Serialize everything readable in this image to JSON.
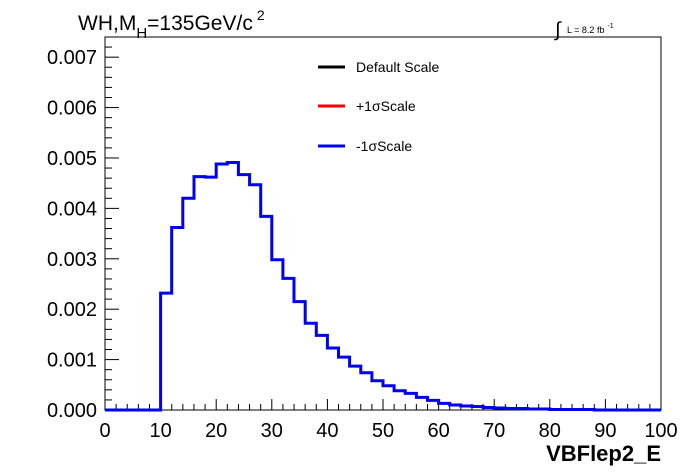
{
  "chart_data": {
    "type": "line",
    "style": "step-histogram",
    "title_main": "WH,M",
    "title_sub": "H",
    "title_rest": "=135GeV/c",
    "title_sup": "2",
    "lumi_integral": "∫",
    "lumi_text": "L = 8.2 fb",
    "lumi_sup": "-1",
    "xlabel": "VBFlep2_E",
    "ylabel": "",
    "xlim": [
      0,
      100
    ],
    "ylim": [
      0,
      0.0074
    ],
    "xticks": [
      "0",
      "10",
      "20",
      "30",
      "40",
      "50",
      "60",
      "70",
      "80",
      "90",
      "100"
    ],
    "yticks": [
      "0.000",
      "0.001",
      "0.002",
      "0.003",
      "0.004",
      "0.005",
      "0.006",
      "0.007"
    ],
    "bin_width": 2,
    "bin_edges_start": 0,
    "legend_position": "top-center",
    "series": [
      {
        "name": "Default Scale",
        "color": "#000000",
        "draw": false,
        "values": [
          0,
          0,
          0,
          0,
          0,
          0.00232,
          0.00362,
          0.0042,
          0.00463,
          0.00462,
          0.00488,
          0.00491,
          0.00467,
          0.00447,
          0.00384,
          0.00298,
          0.00261,
          0.00215,
          0.00172,
          0.00148,
          0.00123,
          0.00105,
          0.00087,
          0.00074,
          0.00058,
          0.00048,
          0.00038,
          0.00033,
          0.00025,
          0.00019,
          0.00013,
          0.0001,
          8e-05,
          7e-05,
          5e-05,
          4e-05,
          3e-05,
          3e-05,
          2e-05,
          2e-05,
          1e-05,
          1e-05,
          1e-05,
          1e-05,
          0.0,
          0.0,
          0.0,
          0.0,
          0.0,
          0.0
        ]
      },
      {
        "name": "+1σScale",
        "color": "#ff0000",
        "draw": false,
        "values": [
          0,
          0,
          0,
          0,
          0,
          0.00232,
          0.00362,
          0.0042,
          0.00463,
          0.00462,
          0.00488,
          0.00491,
          0.00467,
          0.00447,
          0.00384,
          0.00298,
          0.00261,
          0.00215,
          0.00172,
          0.00148,
          0.00123,
          0.00105,
          0.00087,
          0.00074,
          0.00058,
          0.00048,
          0.00038,
          0.00033,
          0.00025,
          0.00019,
          0.00013,
          0.0001,
          8e-05,
          7e-05,
          5e-05,
          4e-05,
          3e-05,
          3e-05,
          2e-05,
          2e-05,
          1e-05,
          1e-05,
          1e-05,
          1e-05,
          0.0,
          0.0,
          0.0,
          0.0,
          0.0,
          0.0
        ]
      },
      {
        "name": "-1σScale",
        "color": "#0000ee",
        "draw": true,
        "values": [
          0,
          0,
          0,
          0,
          0,
          0.00232,
          0.00362,
          0.0042,
          0.00463,
          0.00462,
          0.00488,
          0.00491,
          0.00467,
          0.00447,
          0.00384,
          0.00298,
          0.00261,
          0.00215,
          0.00172,
          0.00148,
          0.00123,
          0.00105,
          0.00087,
          0.00074,
          0.00058,
          0.00048,
          0.00038,
          0.00033,
          0.00025,
          0.00019,
          0.00013,
          0.0001,
          8e-05,
          7e-05,
          5e-05,
          4e-05,
          3e-05,
          3e-05,
          2e-05,
          2e-05,
          1e-05,
          1e-05,
          1e-05,
          1e-05,
          0.0,
          0.0,
          0.0,
          0.0,
          0.0,
          0.0
        ]
      }
    ]
  }
}
